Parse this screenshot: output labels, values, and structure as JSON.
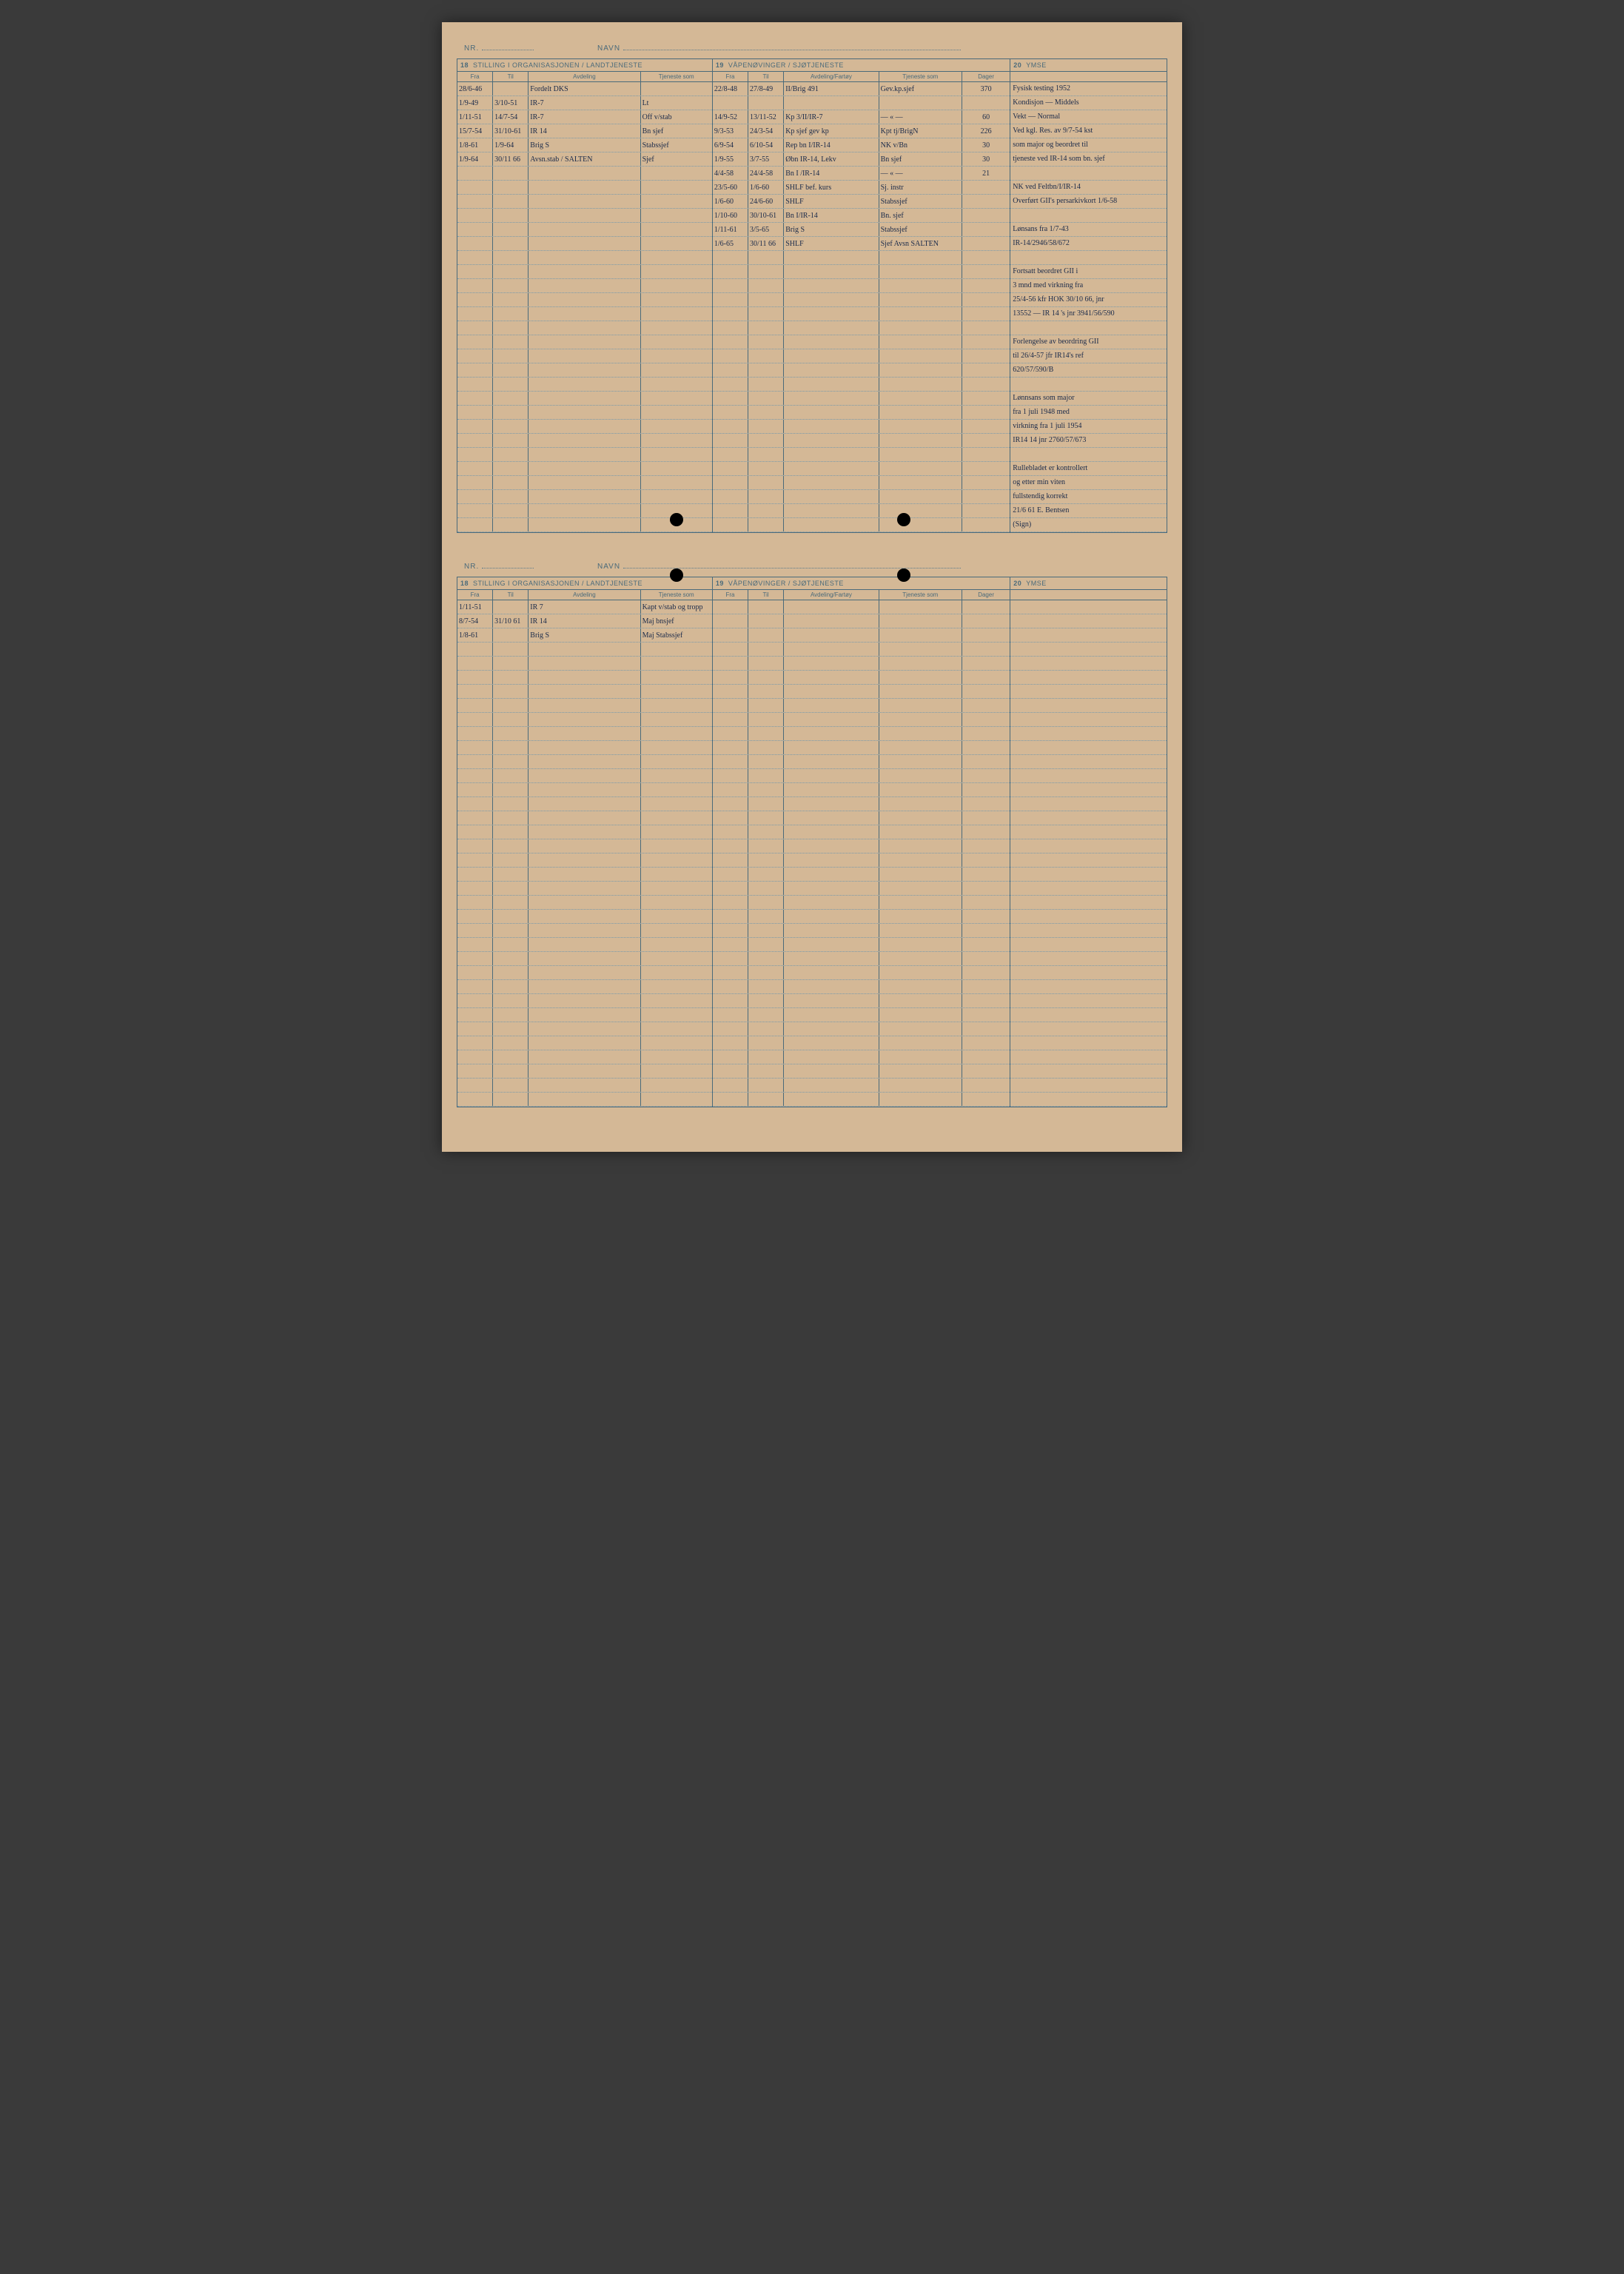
{
  "labels": {
    "nr": "NR.",
    "navn": "NAVN",
    "sec18_title": "STILLING I ORGANISASJONEN / LANDTJENESTE",
    "sec19_title": "VÅPENØVINGER / SJØTJENESTE",
    "sec20_title": "YMSE",
    "fra": "Fra",
    "til": "Til",
    "avdeling": "Avdeling",
    "tjeneste_som": "Tjeneste som",
    "avdeling_fartoy": "Avdeling/Fartøy",
    "dager": "Dager",
    "num18": "18",
    "num19": "19",
    "num20": "20"
  },
  "card1": {
    "sec18_rows": [
      {
        "fra": "28/6-46",
        "til": "",
        "avd": "Fordelt DKS",
        "tj": ""
      },
      {
        "fra": "1/9-49",
        "til": "3/10-51",
        "avd": "IR-7",
        "tj": "Lt"
      },
      {
        "fra": "1/11-51",
        "til": "14/7-54",
        "avd": "IR-7",
        "tj": "Off v/stab"
      },
      {
        "fra": "15/7-54",
        "til": "31/10-61",
        "avd": "IR 14",
        "tj": "Bn sjef"
      },
      {
        "fra": "1/8-61",
        "til": "1/9-64",
        "avd": "Brig S",
        "tj": "Stabssjef"
      },
      {
        "fra": "1/9-64",
        "til": "30/11 66",
        "avd": "Avsn.stab / SALTEN",
        "tj": "Sjef"
      }
    ],
    "sec19_rows": [
      {
        "fra": "22/8-48",
        "til": "27/8-49",
        "avd": "II/Brig 491",
        "tj": "Gev.kp.sjef",
        "dag": "370"
      },
      {
        "fra": "",
        "til": "",
        "avd": "",
        "tj": "",
        "dag": ""
      },
      {
        "fra": "14/9-52",
        "til": "13/11-52",
        "avd": "Kp 3/II/IR-7",
        "tj": "— « —",
        "dag": "60"
      },
      {
        "fra": "9/3-53",
        "til": "24/3-54",
        "avd": "Kp sjef gev kp",
        "tj": "Kpt tj/BrigN",
        "dag": "226"
      },
      {
        "fra": "6/9-54",
        "til": "6/10-54",
        "avd": "Rep bn I/IR-14",
        "tj": "NK v/Bn",
        "dag": "30"
      },
      {
        "fra": "1/9-55",
        "til": "3/7-55",
        "avd": "Øbn IR-14, Lekv",
        "tj": "Bn sjef",
        "dag": "30"
      },
      {
        "fra": "4/4-58",
        "til": "24/4-58",
        "avd": "Bn I /IR-14",
        "tj": "— « —",
        "dag": "21"
      },
      {
        "fra": "23/5-60",
        "til": "1/6-60",
        "avd": "SHLF bef. kurs",
        "tj": "Sj. instr",
        "dag": ""
      },
      {
        "fra": "1/6-60",
        "til": "24/6-60",
        "avd": "SHLF",
        "tj": "Stabssjef",
        "dag": ""
      },
      {
        "fra": "1/10-60",
        "til": "30/10-61",
        "avd": "Bn I/IR-14",
        "tj": "Bn. sjef",
        "dag": ""
      },
      {
        "fra": "1/11-61",
        "til": "3/5-65",
        "avd": "Brig S",
        "tj": "Stabssjef",
        "dag": ""
      },
      {
        "fra": "1/6-65",
        "til": "30/11 66",
        "avd": "SHLF",
        "tj": "Sjef Avsn SALTEN",
        "dag": ""
      }
    ],
    "ymse": [
      "Fysisk testing   1952",
      "Kondisjon  —  Middels",
      "Vekt       —  Normal",
      "Ved kgl. Res. av 9/7-54  kst",
      "som major og beordret til",
      "tjeneste ved IR-14 som bn. sjef",
      "",
      "NK ved Feltbn/I/IR-14",
      "Overført GII's persarkivkort 1/6-58",
      "",
      "Lønsans fra 1/7-43",
      "IR-14/2946/58/672",
      "",
      "Fortsatt beordret GII i",
      "3 mnd med virkning fra",
      "25/4-56  kfr HOK 30/10 66, jnr",
      "13552 — IR 14 's jnr 3941/56/590",
      "",
      "Forlengelse av beordring GII",
      "til 26/4-57 jfr IR14's ref",
      "620/57/590/B",
      "",
      "Lønnsans som major",
      "fra 1 juli 1948 med",
      "virkning fra 1 juli 1954",
      "IR14 14 jnr 2760/57/673",
      "",
      "Rullebladet er kontrollert",
      "og etter min viten",
      "fullstendig korrekt",
      "   21/6 61   E. Bentsen",
      "                      (Sign)"
    ]
  },
  "card2": {
    "sec18_rows": [
      {
        "fra": "1/11-51",
        "til": "",
        "avd": "IR 7",
        "tj": "Kapt v/stab og tropp"
      },
      {
        "fra": "8/7-54",
        "til": "31/10 61",
        "avd": "IR 14",
        "tj": "Maj bnsjef"
      },
      {
        "fra": "1/8-61",
        "til": "",
        "avd": "Brig S",
        "tj": "Maj Stabssjef"
      }
    ],
    "sec19_rows": [],
    "ymse": []
  },
  "layout": {
    "body_rows_card1": 32,
    "body_rows_card2": 36
  },
  "colors": {
    "paper": "#d4b896",
    "ink_printed": "#4a6a7a",
    "ink_handwritten": "#1a2a4a",
    "rule_dotted": "#7a9aaa",
    "background": "#3a3a3a"
  }
}
